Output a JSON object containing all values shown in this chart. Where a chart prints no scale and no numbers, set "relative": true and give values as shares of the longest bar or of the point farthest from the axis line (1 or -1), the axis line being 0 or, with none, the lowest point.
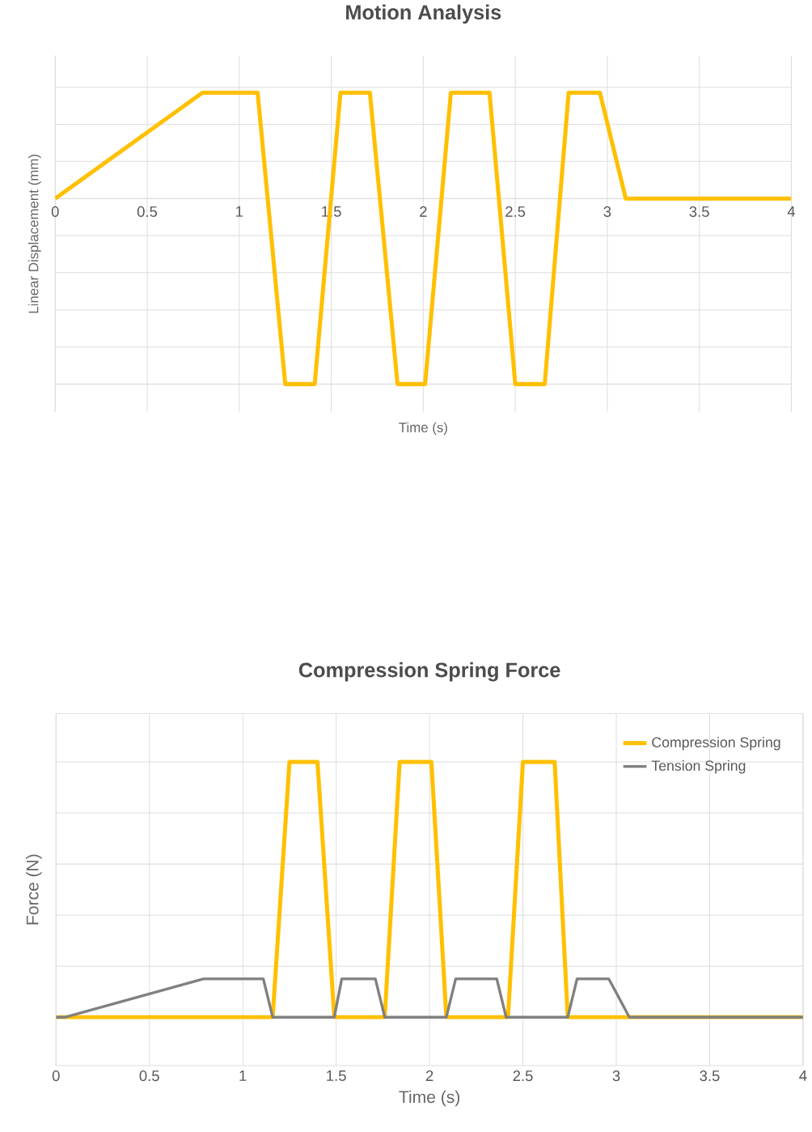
{
  "chart_data": [
    {
      "type": "line",
      "title": "Motion Analysis",
      "xlabel": "Time (s)",
      "ylabel": "Linear Displacement (mm)",
      "relative": true,
      "grid": true,
      "xlim": [
        0,
        4
      ],
      "xticks": [
        0,
        0.5,
        1,
        1.5,
        2,
        2.5,
        3,
        3.5,
        4
      ],
      "line_style": "solid",
      "marker": "none",
      "series": [
        {
          "color": "#ffc000",
          "x": [
            0,
            0.8,
            1.1,
            1.25,
            1.41,
            1.55,
            1.71,
            1.86,
            2.01,
            2.15,
            2.36,
            2.5,
            2.66,
            2.79,
            2.96,
            3.1,
            4
          ],
          "values": [
            0,
            0.57,
            0.57,
            -1,
            -1,
            0.57,
            0.57,
            -1,
            -1,
            0.57,
            0.57,
            -1,
            -1,
            0.57,
            0.57,
            0,
            0
          ]
        }
      ]
    },
    {
      "type": "line",
      "title": "Compression Spring Force",
      "xlabel": "Time (s)",
      "ylabel": "Force (N)",
      "relative": true,
      "grid": true,
      "xlim": [
        0,
        4
      ],
      "xticks": [
        0,
        0.5,
        1,
        1.5,
        2,
        2.5,
        3,
        3.5,
        4
      ],
      "legend": "top right",
      "line_style": "solid",
      "marker": "none",
      "series": [
        {
          "name": "Compression Spring",
          "color": "#ffc000",
          "x": [
            0,
            1.16,
            1.25,
            1.4,
            1.49,
            1.76,
            1.84,
            2.01,
            2.09,
            2.42,
            2.5,
            2.67,
            2.74,
            4
          ],
          "values": [
            0,
            0,
            1,
            1,
            0,
            0,
            1,
            1,
            0,
            0,
            1,
            1,
            0,
            0
          ]
        },
        {
          "name": "Tension Spring",
          "color": "#808080",
          "x": [
            0,
            0.05,
            0.79,
            1.11,
            1.16,
            1.49,
            1.53,
            1.71,
            1.76,
            2.09,
            2.14,
            2.36,
            2.41,
            2.74,
            2.79,
            2.96,
            3.07,
            4
          ],
          "values": [
            0,
            0,
            0.15,
            0.15,
            0,
            0,
            0.15,
            0.15,
            0,
            0,
            0.15,
            0.15,
            0,
            0,
            0.15,
            0.15,
            0,
            0
          ]
        }
      ]
    }
  ]
}
